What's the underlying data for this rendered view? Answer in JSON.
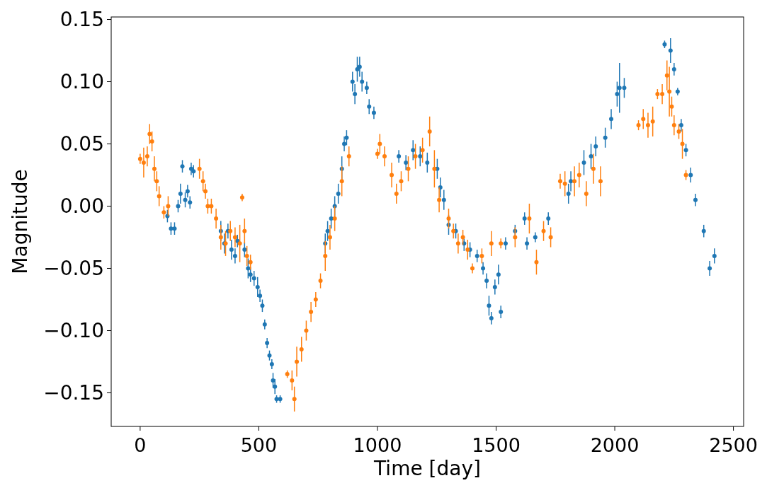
{
  "chart_data": {
    "type": "scatter",
    "xlabel": "Time [day]",
    "ylabel": "Magnitude",
    "xlim": [
      -122,
      2543
    ],
    "ylim": [
      -0.177,
      0.152
    ],
    "xticks": [
      0,
      500,
      1000,
      1500,
      2000,
      2500
    ],
    "yticks": [
      {
        "value": -0.15,
        "label": "−0.15"
      },
      {
        "value": -0.1,
        "label": "−0.10"
      },
      {
        "value": -0.05,
        "label": "−0.05"
      },
      {
        "value": 0,
        "label": "0.00"
      },
      {
        "value": 0.05,
        "label": "0.05"
      },
      {
        "value": 0.1,
        "label": "0.10"
      },
      {
        "value": 0.15,
        "label": "0.15"
      }
    ],
    "marker": "circle",
    "grid": false,
    "series": [
      {
        "color": "#1f77b4",
        "x": [
          115,
          130,
          145,
          160,
          170,
          178,
          190,
          200,
          210,
          215,
          225,
          340,
          355,
          370,
          385,
          400,
          410,
          440,
          455,
          465,
          480,
          495,
          505,
          515,
          525,
          535,
          545,
          555,
          560,
          568,
          575,
          590,
          780,
          790,
          805,
          820,
          835,
          850,
          860,
          870,
          895,
          905,
          915,
          925,
          935,
          955,
          965,
          985,
          1090,
          1120,
          1150,
          1180,
          1210,
          1252,
          1265,
          1280,
          1300,
          1330,
          1365,
          1390,
          1420,
          1445,
          1460,
          1470,
          1480,
          1495,
          1510,
          1520,
          1540,
          1580,
          1620,
          1630,
          1665,
          1720,
          1805,
          1815,
          1870,
          1900,
          1920,
          1960,
          1985,
          2010,
          2020,
          2040,
          2210,
          2235,
          2250,
          2265,
          2280,
          2300,
          2320,
          2340,
          2375,
          2400,
          2420
        ],
        "values": [
          -0.008,
          -0.018,
          -0.018,
          0.0,
          0.01,
          0.032,
          0.005,
          0.012,
          0.003,
          0.03,
          0.028,
          -0.02,
          -0.03,
          -0.02,
          -0.035,
          -0.04,
          -0.028,
          -0.035,
          -0.05,
          -0.055,
          -0.058,
          -0.065,
          -0.072,
          -0.08,
          -0.095,
          -0.11,
          -0.12,
          -0.127,
          -0.14,
          -0.145,
          -0.155,
          -0.155,
          -0.03,
          -0.02,
          -0.01,
          0.0,
          0.01,
          0.03,
          0.05,
          0.055,
          0.1,
          0.09,
          0.11,
          0.112,
          0.1,
          0.095,
          0.08,
          0.075,
          0.04,
          0.035,
          0.045,
          0.04,
          0.035,
          0.03,
          0.015,
          0.005,
          -0.015,
          -0.02,
          -0.03,
          -0.035,
          -0.04,
          -0.05,
          -0.06,
          -0.08,
          -0.09,
          -0.065,
          -0.055,
          -0.085,
          -0.03,
          -0.02,
          -0.01,
          -0.03,
          -0.025,
          -0.01,
          0.01,
          0.02,
          0.035,
          0.04,
          0.048,
          0.055,
          0.07,
          0.09,
          0.095,
          0.095,
          0.13,
          0.125,
          0.11,
          0.092,
          0.065,
          0.045,
          0.025,
          0.005,
          -0.02,
          -0.05,
          -0.04
        ],
        "errors": [
          0.005,
          0.005,
          0.005,
          0.005,
          0.008,
          0.005,
          0.006,
          0.005,
          0.005,
          0.005,
          0.005,
          0.008,
          0.008,
          0.006,
          0.008,
          0.006,
          0.005,
          0.006,
          0.008,
          0.006,
          0.006,
          0.008,
          0.005,
          0.005,
          0.004,
          0.004,
          0.004,
          0.004,
          0.006,
          0.006,
          0.003,
          0.003,
          0.008,
          0.008,
          0.008,
          0.008,
          0.008,
          0.01,
          0.006,
          0.006,
          0.008,
          0.008,
          0.01,
          0.008,
          0.008,
          0.005,
          0.006,
          0.005,
          0.005,
          0.006,
          0.008,
          0.008,
          0.008,
          0.008,
          0.008,
          0.008,
          0.008,
          0.006,
          0.006,
          0.006,
          0.005,
          0.005,
          0.006,
          0.008,
          0.005,
          0.006,
          0.008,
          0.005,
          0.005,
          0.005,
          0.005,
          0.005,
          0.004,
          0.005,
          0.008,
          0.008,
          0.01,
          0.01,
          0.008,
          0.008,
          0.008,
          0.01,
          0.02,
          0.008,
          0.003,
          0.01,
          0.005,
          0.003,
          0.005,
          0.005,
          0.006,
          0.005,
          0.005,
          0.006,
          0.006
        ]
      },
      {
        "color": "#ff7f0e",
        "x": [
          0,
          15,
          30,
          40,
          50,
          60,
          70,
          80,
          100,
          118,
          250,
          265,
          275,
          285,
          300,
          320,
          340,
          360,
          380,
          400,
          420,
          430,
          440,
          450,
          465,
          620,
          640,
          650,
          660,
          680,
          700,
          720,
          740,
          760,
          780,
          800,
          820,
          850,
          880,
          1000,
          1010,
          1030,
          1060,
          1080,
          1100,
          1130,
          1160,
          1190,
          1220,
          1240,
          1260,
          1300,
          1320,
          1340,
          1360,
          1380,
          1400,
          1440,
          1480,
          1520,
          1580,
          1640,
          1670,
          1700,
          1730,
          1770,
          1790,
          1830,
          1850,
          1880,
          1910,
          1940,
          2100,
          2120,
          2140,
          2160,
          2180,
          2200,
          2220,
          2230,
          2240,
          2250,
          2270,
          2285,
          2300
        ],
        "values": [
          0.038,
          0.035,
          0.04,
          0.058,
          0.052,
          0.03,
          0.02,
          0.008,
          -0.005,
          0.0,
          0.03,
          0.02,
          0.012,
          0.0,
          0.0,
          -0.01,
          -0.025,
          -0.03,
          -0.02,
          -0.025,
          -0.03,
          0.007,
          -0.02,
          -0.04,
          -0.045,
          -0.135,
          -0.14,
          -0.155,
          -0.125,
          -0.115,
          -0.1,
          -0.085,
          -0.075,
          -0.06,
          -0.04,
          -0.025,
          -0.01,
          0.02,
          0.04,
          0.042,
          0.05,
          0.04,
          0.025,
          0.01,
          0.02,
          0.03,
          0.04,
          0.045,
          0.06,
          0.03,
          0.005,
          -0.01,
          -0.02,
          -0.03,
          -0.025,
          -0.035,
          -0.05,
          -0.04,
          -0.03,
          -0.03,
          -0.025,
          -0.01,
          -0.045,
          -0.02,
          -0.025,
          0.02,
          0.018,
          0.02,
          0.025,
          0.01,
          0.03,
          0.02,
          0.065,
          0.07,
          0.065,
          0.068,
          0.09,
          0.09,
          0.105,
          0.092,
          0.08,
          0.065,
          0.06,
          0.05,
          0.025
        ],
        "errors": [
          0.004,
          0.012,
          0.008,
          0.008,
          0.008,
          0.01,
          0.008,
          0.008,
          0.005,
          0.008,
          0.008,
          0.008,
          0.006,
          0.006,
          0.006,
          0.008,
          0.01,
          0.01,
          0.008,
          0.008,
          0.015,
          0.003,
          0.01,
          0.008,
          0.006,
          0.003,
          0.008,
          0.01,
          0.012,
          0.01,
          0.008,
          0.008,
          0.006,
          0.006,
          0.012,
          0.01,
          0.01,
          0.012,
          0.008,
          0.004,
          0.008,
          0.008,
          0.01,
          0.008,
          0.008,
          0.01,
          0.01,
          0.01,
          0.012,
          0.015,
          0.01,
          0.008,
          0.006,
          0.008,
          0.006,
          0.008,
          0.004,
          0.006,
          0.01,
          0.004,
          0.008,
          0.012,
          0.01,
          0.008,
          0.008,
          0.006,
          0.01,
          0.012,
          0.01,
          0.01,
          0.012,
          0.012,
          0.004,
          0.008,
          0.01,
          0.012,
          0.004,
          0.008,
          0.012,
          0.02,
          0.008,
          0.008,
          0.006,
          0.012,
          0.004
        ]
      }
    ]
  }
}
